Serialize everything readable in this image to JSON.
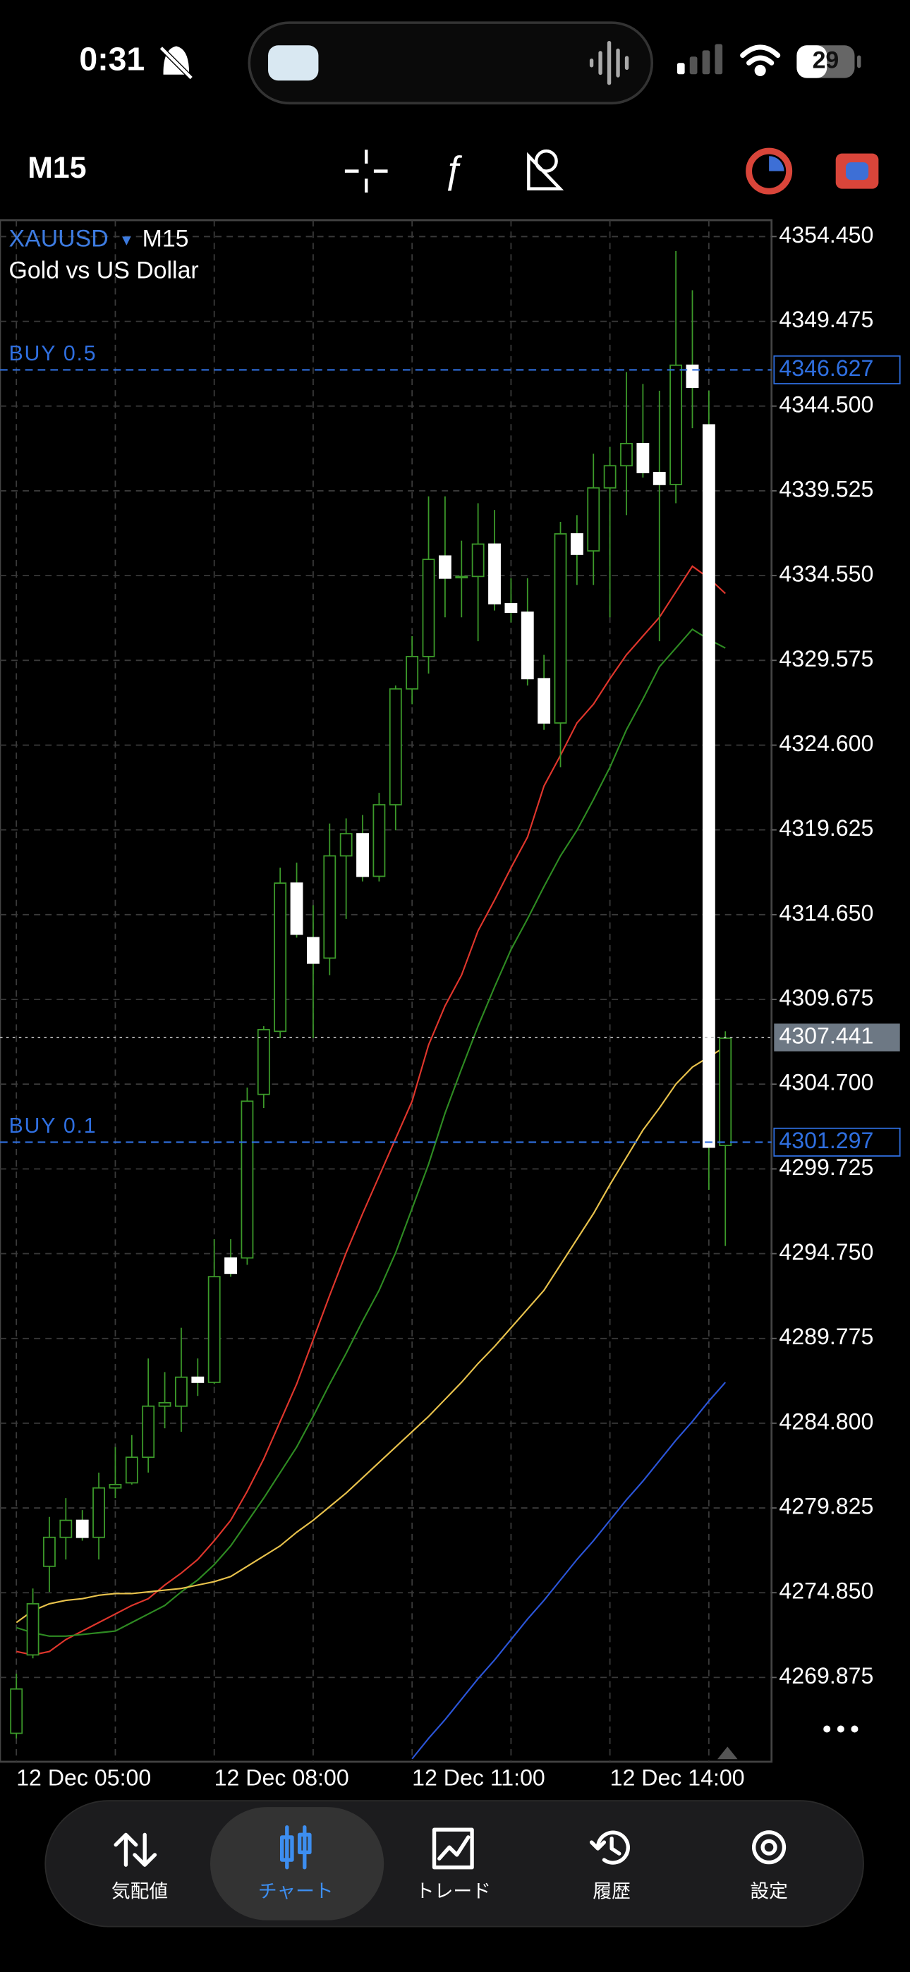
{
  "status_bar": {
    "time": "0:31",
    "battery": "29"
  },
  "toolbar": {
    "timeframe": "M15"
  },
  "chart_data": {
    "type": "candlestick",
    "title": "XAUUSD",
    "timeframe": "M15",
    "subtitle": "Gold vs US Dollar",
    "categories": [
      "12 Dec 05:00",
      null,
      null,
      null,
      null,
      null,
      null,
      null,
      null,
      null,
      null,
      null,
      "12 Dec 08:00",
      null,
      null,
      null,
      null,
      null,
      null,
      null,
      null,
      null,
      null,
      null,
      "12 Dec 11:00",
      null,
      null,
      null,
      null,
      null,
      null,
      null,
      null,
      null,
      null,
      null,
      "12 Dec 14:00",
      null,
      null,
      null,
      null,
      null,
      null,
      null
    ],
    "candles": [
      [
        4266.6,
        4270.1,
        4266.3,
        4269.2
      ],
      [
        4271.2,
        4275.1,
        4271.0,
        4274.2
      ],
      [
        4276.4,
        4279.3,
        4274.9,
        4278.1
      ],
      [
        4278.1,
        4280.4,
        4276.8,
        4279.1
      ],
      [
        4279.1,
        4279.7,
        4277.9,
        4278.1
      ],
      [
        4278.1,
        4281.9,
        4276.8,
        4281.0
      ],
      [
        4281.0,
        4283.4,
        4280.4,
        4281.2
      ],
      [
        4281.3,
        4284.1,
        4281.2,
        4282.8
      ],
      [
        4282.8,
        4288.6,
        4281.9,
        4285.8
      ],
      [
        4285.8,
        4287.8,
        4284.5,
        4286.0
      ],
      [
        4285.8,
        4290.4,
        4284.3,
        4287.5
      ],
      [
        4287.5,
        4288.6,
        4286.4,
        4287.2
      ],
      [
        4287.2,
        4295.6,
        4287.1,
        4293.4
      ],
      [
        4294.5,
        4295.6,
        4293.4,
        4293.6
      ],
      [
        4294.5,
        4304.5,
        4294.1,
        4303.7
      ],
      [
        4304.1,
        4308.1,
        4303.3,
        4307.9
      ],
      [
        4307.8,
        4317.4,
        4307.4,
        4316.5
      ],
      [
        4316.5,
        4317.7,
        4313.3,
        4313.5
      ],
      [
        4313.3,
        4315.2,
        4307.4,
        4311.8
      ],
      [
        4312.1,
        4320.0,
        4311.1,
        4318.1
      ],
      [
        4318.1,
        4320.3,
        4314.4,
        4319.4
      ],
      [
        4319.4,
        4320.5,
        4316.6,
        4316.9
      ],
      [
        4316.9,
        4321.8,
        4316.6,
        4321.1
      ],
      [
        4321.1,
        4328.1,
        4319.6,
        4327.9
      ],
      [
        4327.9,
        4331.0,
        4327.0,
        4329.8
      ],
      [
        4329.8,
        4339.2,
        4328.8,
        4335.5
      ],
      [
        4335.7,
        4339.2,
        4332.1,
        4334.4
      ],
      [
        4334.5,
        4336.6,
        4332.1,
        4334.5
      ],
      [
        4334.5,
        4338.8,
        4330.7,
        4336.4
      ],
      [
        4336.4,
        4338.4,
        4332.5,
        4332.9
      ],
      [
        4332.9,
        4334.4,
        4331.8,
        4332.4
      ],
      [
        4332.4,
        4334.4,
        4328.1,
        4328.5
      ],
      [
        4328.5,
        4329.9,
        4325.5,
        4325.9
      ],
      [
        4325.9,
        4337.7,
        4323.3,
        4337.0
      ],
      [
        4337.0,
        4338.1,
        4334.0,
        4335.8
      ],
      [
        4336.0,
        4341.7,
        4334.0,
        4339.7
      ],
      [
        4339.7,
        4342.1,
        4332.1,
        4341.0
      ],
      [
        4341.0,
        4346.5,
        4338.1,
        4342.3
      ],
      [
        4342.3,
        4345.8,
        4340.3,
        4340.6
      ],
      [
        4340.6,
        4345.4,
        4330.7,
        4339.9
      ],
      [
        4339.9,
        4353.6,
        4338.8,
        4346.9
      ],
      [
        4346.9,
        4351.3,
        4343.2,
        4345.6
      ],
      [
        4343.4,
        4345.4,
        4298.5,
        4301.0
      ],
      [
        4301.1,
        4307.8,
        4295.2,
        4307.4
      ]
    ],
    "up_color": "#3c9a2a",
    "down_color": "#ffffff",
    "series": [
      {
        "color": "#e0362c",
        "values": [
          4271.4,
          4271.2,
          4271.4,
          4272.1,
          4272.6,
          4273.1,
          4273.6,
          4274.1,
          4274.5,
          4275.3,
          4276.0,
          4276.8,
          4277.9,
          4279.1,
          4280.8,
          4282.7,
          4284.9,
          4287.1,
          4289.7,
          4292.3,
          4294.8,
          4297.1,
          4299.3,
          4301.5,
          4303.7,
          4307.0,
          4309.3,
          4311.1,
          4313.7,
          4315.5,
          4317.4,
          4319.2,
          4322.2,
          4324.0,
          4325.9,
          4327.0,
          4328.5,
          4329.9,
          4331.0,
          4332.1,
          4333.6,
          4335.1,
          4334.4,
          4333.5
        ]
      },
      {
        "color": "#2e8b22",
        "values": [
          4272.8,
          4272.5,
          4272.3,
          4272.3,
          4272.4,
          4272.5,
          4272.6,
          4273.1,
          4273.6,
          4274.1,
          4274.9,
          4275.6,
          4276.5,
          4277.6,
          4279.0,
          4280.4,
          4281.9,
          4283.4,
          4285.2,
          4287.1,
          4288.9,
          4290.8,
          4292.6,
          4294.8,
          4297.4,
          4300.0,
          4303.0,
          4305.6,
          4308.1,
          4310.4,
          4312.6,
          4314.4,
          4316.3,
          4318.1,
          4319.6,
          4321.4,
          4323.3,
          4325.5,
          4327.3,
          4329.2,
          4330.3,
          4331.4,
          4330.8,
          4330.3
        ]
      },
      {
        "color": "#e8c24c",
        "values": [
          4273.1,
          4273.8,
          4274.2,
          4274.4,
          4274.5,
          4274.7,
          4274.8,
          4274.8,
          4274.9,
          4275.0,
          4275.1,
          4275.3,
          4275.5,
          4275.8,
          4276.4,
          4277.0,
          4277.6,
          4278.4,
          4279.1,
          4279.9,
          4280.7,
          4281.6,
          4282.5,
          4283.4,
          4284.3,
          4285.2,
          4286.2,
          4287.2,
          4288.3,
          4289.3,
          4290.4,
          4291.5,
          4292.6,
          4294.1,
          4295.6,
          4297.1,
          4298.8,
          4300.4,
          4302.0,
          4303.3,
          4304.7,
          4305.7,
          4306.3,
          4306.9
        ]
      },
      {
        "color": "#2b55d9",
        "values": [
          null,
          null,
          null,
          null,
          null,
          null,
          null,
          null,
          null,
          null,
          null,
          null,
          null,
          null,
          null,
          null,
          null,
          null,
          null,
          null,
          null,
          null,
          null,
          null,
          4265.1,
          4266.3,
          4267.4,
          4268.6,
          4269.8,
          4270.9,
          4272.1,
          4273.3,
          4274.4,
          4275.6,
          4276.8,
          4277.9,
          4279.1,
          4280.3,
          4281.4,
          4282.6,
          4283.8,
          4284.9,
          4286.1,
          4287.2
        ]
      }
    ],
    "ylim": [
      4264.93,
      4355.41
    ],
    "yticks": [
      {
        "value": 4354.45,
        "label": "4354.450"
      },
      4349.475,
      {
        "value": 4344.5,
        "label": "4344.500"
      },
      4339.525,
      {
        "value": 4334.55,
        "label": "4334.550"
      },
      4329.575,
      {
        "value": 4324.6,
        "label": "4324.600"
      },
      4319.625,
      {
        "value": 4314.65,
        "label": "4314.650"
      },
      4309.675,
      {
        "value": 4304.7,
        "label": "4304.700"
      },
      4299.725,
      {
        "value": 4294.75,
        "label": "4294.750"
      },
      4289.775,
      {
        "value": 4284.8,
        "label": "4284.800"
      },
      4279.825,
      {
        "value": 4274.85,
        "label": "4274.850"
      },
      4269.875
    ],
    "grid": true,
    "price_lines": [
      {
        "label": "BUY 0.5",
        "value": 4346.627,
        "color": "#2f6fe0"
      },
      {
        "label": "BUY 0.1",
        "value": 4301.297,
        "color": "#2f6fe0"
      }
    ],
    "bid": 4307.441
  },
  "tab_bar": {
    "tabs": [
      "気配値",
      "チャート",
      "トレード",
      "履歴",
      "設定"
    ],
    "active": 1,
    "active_color": "#3d8ef0"
  }
}
